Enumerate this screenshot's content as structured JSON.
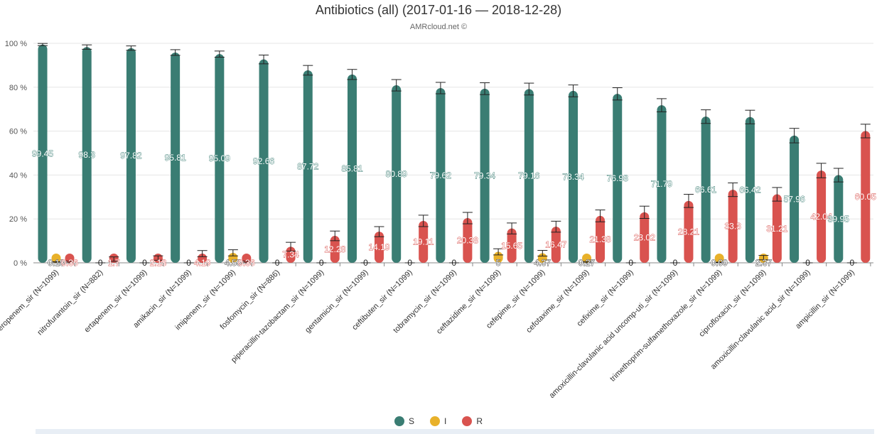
{
  "title": "Antibiotics (all) (2017-01-16 — 2018-12-28)",
  "subtitle": "AMRcloud.net ©",
  "chart_data": {
    "type": "bar",
    "ylim": [
      0,
      100
    ],
    "y_ticks": [
      "0 %",
      "20 %",
      "40 %",
      "60 %",
      "80 %",
      "100 %"
    ],
    "y_tick_values": [
      0,
      20,
      40,
      60,
      80,
      100
    ],
    "grid": true,
    "legend_position": "bottom",
    "categories": [
      "meropenem_sir (N=1099)",
      "nitrofurantoin_sir (N=882)",
      "ertapenem_sir (N=1099)",
      "amikacin_sir (N=1099)",
      "imipenem_sir (N=1099)",
      "fosfomycin_sir (N=886)",
      "piperacillin-tazobactam_sir (N=1099)",
      "gentamicin_sir (N=1099)",
      "ceftibuten_sir (N=1099)",
      "tobramycin_sir (N=1099)",
      "ceftazidime_sir (N=1099)",
      "cefepime_sir (N=1099)",
      "cefotaxime_sir (N=1099)",
      "cefixime_sir (N=1099)",
      "amoxicillin-clavulanic acid uncomp-uti_sir (N=1099)",
      "trimethoprim-sulfamethoxazole_sir (N=1099)",
      "ciprofloxacin_sir (N=1099)",
      "amoxicillin-clavulanic acid_sir (N=1099)",
      "ampicillin_sir (N=1099)"
    ],
    "series": [
      {
        "name": "S",
        "color": "#3a7d73",
        "values": [
          99.45,
          98.3,
          97.82,
          95.81,
          95.09,
          92.66,
          87.72,
          85.81,
          80.89,
          79.62,
          79.34,
          79.16,
          78.34,
          76.98,
          71.79,
          66.61,
          66.42,
          57.96,
          39.95
        ],
        "errors": [
          0.5,
          1.0,
          1.0,
          1.3,
          1.4,
          2.0,
          2.2,
          2.3,
          2.6,
          2.6,
          2.7,
          2.7,
          2.7,
          2.8,
          3.0,
          3.1,
          3.1,
          3.3,
          3.1
        ]
      },
      {
        "name": "I",
        "color": "#e8b12a",
        "values": [
          0.18,
          0,
          0,
          0,
          4.55,
          0,
          0,
          0,
          0,
          0,
          5,
          4.37,
          0.27,
          0,
          0,
          0.09,
          2.37,
          0,
          0
        ],
        "errors": [
          0.3,
          0,
          0,
          0,
          1.4,
          0,
          0,
          0,
          0,
          0,
          1.4,
          1.3,
          0.3,
          0,
          0,
          0.2,
          1.0,
          0,
          0
        ]
      },
      {
        "name": "R",
        "color": "#d9534f",
        "values": [
          0.36,
          1.7,
          2.18,
          4.19,
          0.36,
          7.34,
          12.28,
          14.19,
          19.11,
          20.38,
          15.65,
          16.47,
          21.38,
          23.02,
          28.21,
          33.3,
          31.21,
          42.04,
          60.05
        ],
        "errors": [
          0.4,
          1.0,
          1.0,
          1.4,
          0.4,
          2.0,
          2.2,
          2.3,
          2.6,
          2.6,
          2.5,
          2.5,
          2.7,
          2.8,
          3.0,
          3.1,
          3.1,
          3.3,
          3.1
        ]
      }
    ],
    "labels": {
      "S": [
        "99.45",
        "98.3",
        "97.82",
        "95.81",
        "95.09",
        "92.66",
        "87.72",
        "85.81",
        "80.89",
        "79.62",
        "79.34",
        "79.16",
        "78.34",
        "76.98",
        "71.79",
        "66.61",
        "66.42",
        "57.96",
        "39.95"
      ],
      "I": [
        "0.18",
        "0",
        "0",
        "0",
        "4.55",
        "0",
        "0",
        "0",
        "0",
        "0",
        "5",
        "4.37",
        "0.27",
        "0",
        "0",
        "0.09",
        "2.37",
        "0",
        "0"
      ],
      "R": [
        "0.36",
        "1.7",
        "2.18",
        "4.19",
        "0.36",
        "7.34",
        "12.28",
        "14.19",
        "19.11",
        "20.38",
        "15.65",
        "16.47",
        "21.38",
        "23.02",
        "28.21",
        "33.3",
        "31.21",
        "42.04",
        "60.05"
      ]
    }
  },
  "legend": [
    {
      "label": "S",
      "color": "#3a7d73"
    },
    {
      "label": "I",
      "color": "#e8b12a"
    },
    {
      "label": "R",
      "color": "#d9534f"
    }
  ]
}
